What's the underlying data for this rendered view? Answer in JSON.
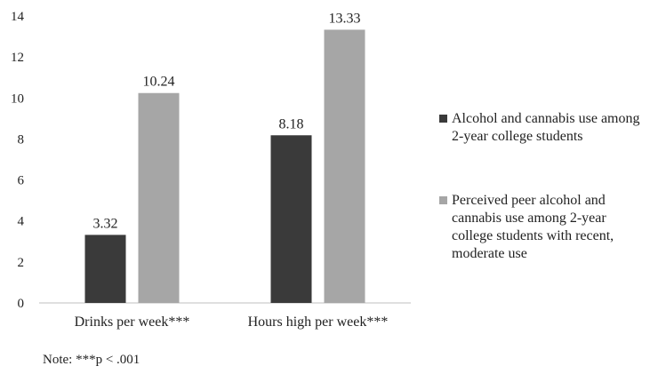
{
  "chart_data": {
    "type": "bar",
    "categories": [
      "Drinks per week***",
      "Hours high per week***"
    ],
    "series": [
      {
        "name": "Alcohol and cannabis use among 2-year college students",
        "values": [
          3.32,
          8.18
        ],
        "color": "#3a3a3a"
      },
      {
        "name": "Perceived peer alcohol and cannabis use among 2-year college students with recent, moderate use",
        "values": [
          10.24,
          13.33
        ],
        "color": "#a6a6a6"
      }
    ],
    "data_labels": [
      [
        "3.32",
        "8.18"
      ],
      [
        "10.24",
        "13.33"
      ]
    ],
    "ylim": [
      0,
      14
    ],
    "yticks": [
      0,
      2,
      4,
      6,
      8,
      10,
      12,
      14
    ],
    "grid": false,
    "legend_position": "right"
  },
  "note": "Note: ***p < .001"
}
